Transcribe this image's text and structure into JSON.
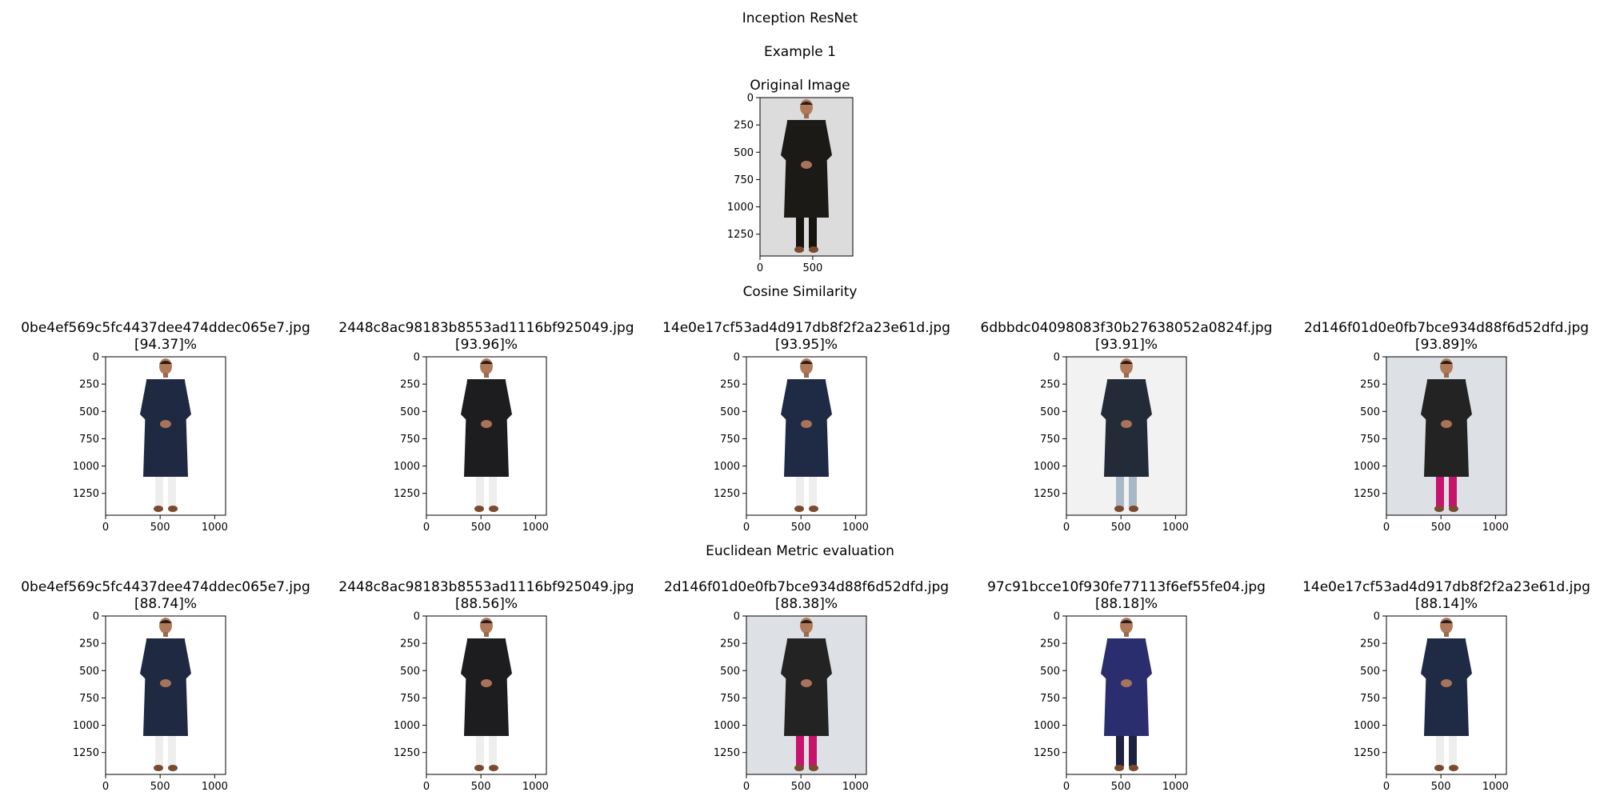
{
  "figure": {
    "title": "Inception ResNet",
    "subtitle": "Example 1",
    "original": {
      "title": "Original Image",
      "y_ticks": [
        "0",
        "250",
        "500",
        "750",
        "1000",
        "1250"
      ],
      "x_ticks": [
        "0",
        "500"
      ],
      "person": {
        "top": "#1c1a17",
        "pants": "#16140f",
        "bg": "#dcdcdc"
      }
    },
    "sections": [
      {
        "label": "Cosine Similarity",
        "results": [
          {
            "filename": "0be4ef569c5fc4437dee474ddec065e7.jpg",
            "score": "[94.37]%",
            "person": {
              "top": "#1f2a42",
              "pants": "#eeeeee",
              "bg": "#ffffff"
            }
          },
          {
            "filename": "2448c8ac98183b8553ad1116bf925049.jpg",
            "score": "[93.96]%",
            "person": {
              "top": "#1d1d1f",
              "pants": "#eeeeee",
              "bg": "#ffffff"
            }
          },
          {
            "filename": "14e0e17cf53ad4d917db8f2f2a23e61d.jpg",
            "score": "[93.95]%",
            "person": {
              "top": "#1f2a45",
              "pants": "#eeeeee",
              "bg": "#ffffff"
            }
          },
          {
            "filename": "6dbbdc04098083f30b27638052a0824f.jpg",
            "score": "[93.91]%",
            "person": {
              "top": "#232a38",
              "pants": "#a9b8c6",
              "bg": "#f2f2f2"
            }
          },
          {
            "filename": "2d146f01d0e0fb7bce934d88f6d52dfd.jpg",
            "score": "[93.89]%",
            "person": {
              "top": "#232323",
              "pants": "#c7136c",
              "bg": "#dde1e6"
            }
          }
        ]
      },
      {
        "label": "Euclidean Metric evaluation",
        "results": [
          {
            "filename": "0be4ef569c5fc4437dee474ddec065e7.jpg",
            "score": "[88.74]%",
            "person": {
              "top": "#1f2a42",
              "pants": "#eeeeee",
              "bg": "#ffffff"
            }
          },
          {
            "filename": "2448c8ac98183b8553ad1116bf925049.jpg",
            "score": "[88.56]%",
            "person": {
              "top": "#1d1d1f",
              "pants": "#eeeeee",
              "bg": "#ffffff"
            }
          },
          {
            "filename": "2d146f01d0e0fb7bce934d88f6d52dfd.jpg",
            "score": "[88.38]%",
            "person": {
              "top": "#232323",
              "pants": "#c7136c",
              "bg": "#dde1e6"
            }
          },
          {
            "filename": "97c91bcce10f930fe77113f6ef55fe04.jpg",
            "score": "[88.18]%",
            "person": {
              "top": "#2b2e6e",
              "pants": "#1e2140",
              "bg": "#ffffff"
            }
          },
          {
            "filename": "14e0e17cf53ad4d917db8f2f2a23e61d.jpg",
            "score": "[88.14]%",
            "person": {
              "top": "#1f2a45",
              "pants": "#eeeeee",
              "bg": "#ffffff"
            }
          }
        ]
      }
    ],
    "result_axes": {
      "y_ticks": [
        "0",
        "250",
        "500",
        "750",
        "1000",
        "1250"
      ],
      "x_ticks": [
        "0",
        "500",
        "1000"
      ]
    }
  }
}
